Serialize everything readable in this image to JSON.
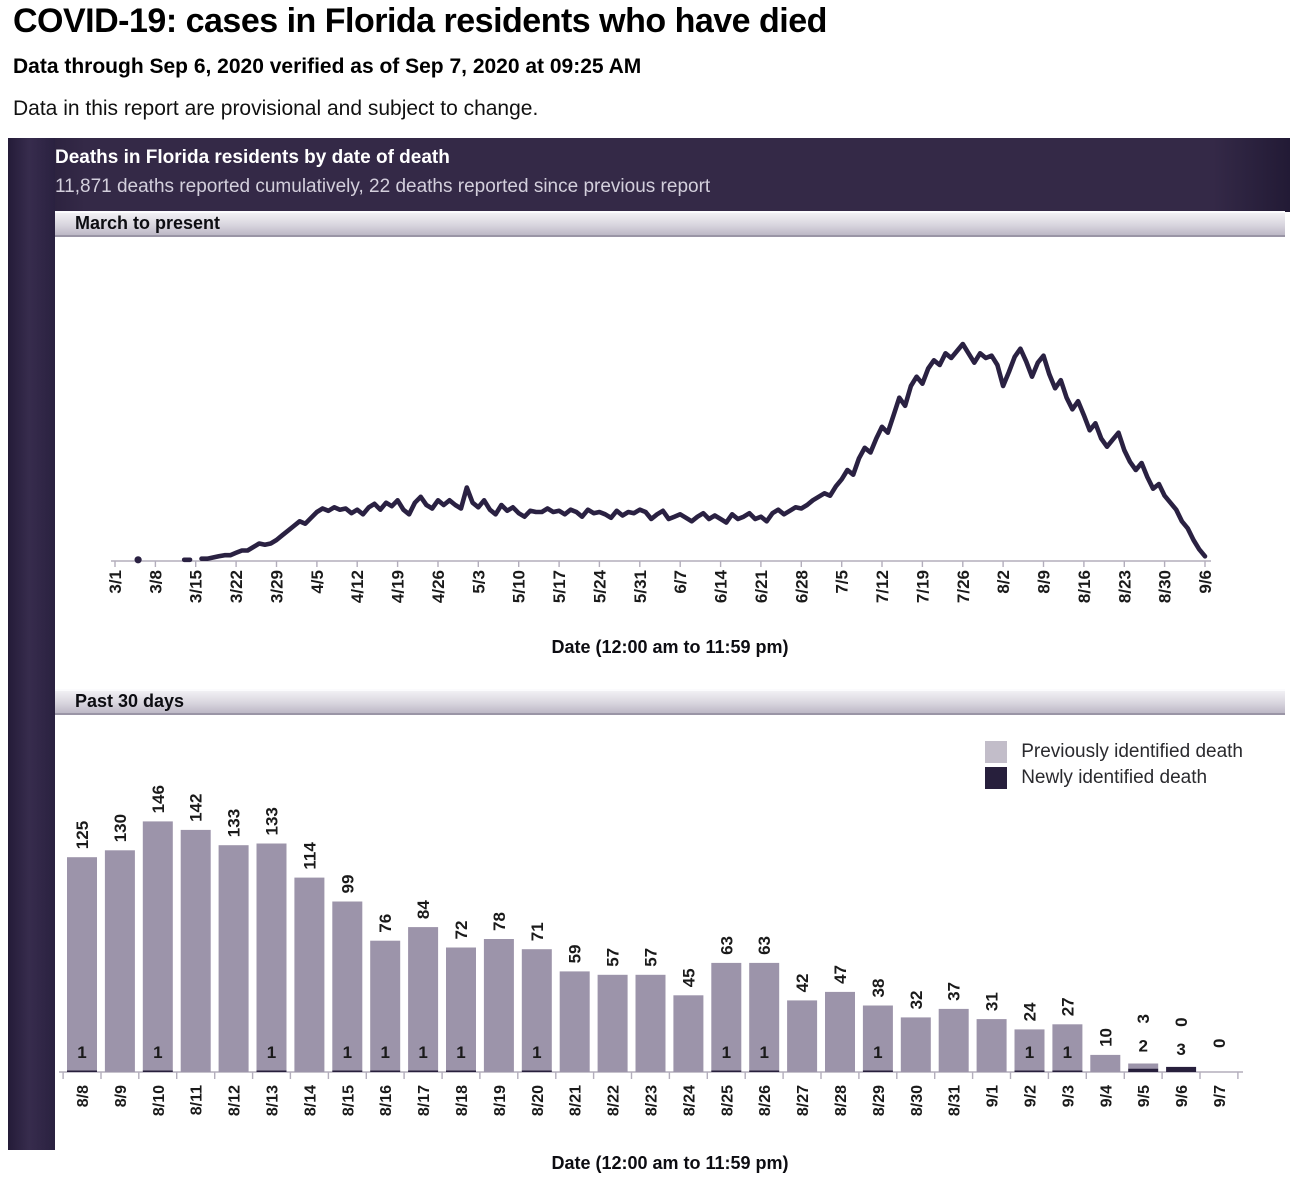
{
  "page": {
    "title": "COVID-19: cases in Florida residents who have died",
    "subtitle": "Data through Sep 6, 2020 verified as of Sep 7, 2020 at 09:25 AM",
    "note": "Data in this report are provisional and subject to change."
  },
  "panel": {
    "header": "Deaths in Florida residents by date of death",
    "subheader": "11,871 deaths reported cumulatively, 22 deaths reported since previous report"
  },
  "legend": [
    {
      "label": "Previously identified death",
      "color": "#c2bdc9"
    },
    {
      "label": "Newly identified death",
      "color": "#271f3c"
    }
  ],
  "colors": {
    "line": "#2a2142",
    "bar_light": "#9c94aa",
    "bar_dark": "#271f3c",
    "axis": "#b3aebc",
    "label": "#1a1a1a"
  },
  "chart_data": [
    {
      "type": "line",
      "title": "March to present",
      "xlabel": "Date (12:00 am to 11:59 pm)",
      "x_start": "3/1",
      "x_end": "9/6",
      "cadence": "daily",
      "x_ticks": [
        "3/1",
        "3/8",
        "3/15",
        "3/22",
        "3/29",
        "4/5",
        "4/12",
        "4/19",
        "4/26",
        "5/3",
        "5/10",
        "5/17",
        "5/24",
        "5/31",
        "6/7",
        "6/14",
        "6/21",
        "6/28",
        "7/5",
        "7/12",
        "7/19",
        "7/26",
        "8/2",
        "8/9",
        "8/16",
        "8/23",
        "8/30",
        "9/6"
      ],
      "ylim": [
        0,
        200
      ],
      "grid": false,
      "values": [
        0,
        0,
        0,
        0,
        1,
        0,
        0,
        0,
        0,
        0,
        0,
        0,
        1,
        1,
        0,
        2,
        2,
        3,
        4,
        5,
        5,
        7,
        9,
        9,
        12,
        15,
        14,
        15,
        18,
        22,
        26,
        30,
        34,
        32,
        37,
        42,
        45,
        43,
        46,
        44,
        45,
        41,
        44,
        40,
        46,
        49,
        44,
        50,
        47,
        52,
        44,
        40,
        50,
        55,
        48,
        45,
        52,
        48,
        52,
        48,
        45,
        63,
        50,
        46,
        52,
        44,
        40,
        48,
        43,
        46,
        41,
        38,
        43,
        42,
        42,
        45,
        42,
        43,
        40,
        44,
        42,
        38,
        44,
        41,
        42,
        40,
        37,
        43,
        39,
        42,
        41,
        44,
        42,
        36,
        40,
        43,
        36,
        38,
        40,
        37,
        34,
        38,
        41,
        36,
        39,
        36,
        33,
        40,
        36,
        38,
        41,
        36,
        38,
        34,
        41,
        44,
        40,
        43,
        46,
        45,
        48,
        52,
        55,
        58,
        56,
        64,
        70,
        78,
        74,
        88,
        97,
        93,
        105,
        115,
        110,
        125,
        140,
        133,
        150,
        158,
        152,
        165,
        172,
        168,
        178,
        174,
        180,
        186,
        178,
        170,
        178,
        174,
        176,
        168,
        150,
        162,
        175,
        182,
        171,
        158,
        170,
        176,
        160,
        148,
        155,
        140,
        130,
        137,
        125,
        112,
        118,
        105,
        98,
        104,
        110,
        95,
        85,
        78,
        84,
        72,
        62,
        66,
        56,
        50,
        44,
        34,
        28,
        18,
        10,
        4
      ]
    },
    {
      "type": "bar",
      "title": "Past 30 days",
      "xlabel": "Date (12:00 am to 11:59 pm)",
      "stacked": true,
      "ylim": [
        0,
        155
      ],
      "grid": false,
      "legend_position": "top-right",
      "categories": [
        "8/8",
        "8/9",
        "8/10",
        "8/11",
        "8/12",
        "8/13",
        "8/14",
        "8/15",
        "8/16",
        "8/17",
        "8/18",
        "8/19",
        "8/20",
        "8/21",
        "8/22",
        "8/23",
        "8/24",
        "8/25",
        "8/26",
        "8/27",
        "8/28",
        "8/29",
        "8/30",
        "8/31",
        "9/1",
        "9/2",
        "9/3",
        "9/4",
        "9/5",
        "9/6",
        "9/7"
      ],
      "series": [
        {
          "name": "Previously identified death",
          "values": [
            125,
            130,
            146,
            142,
            133,
            133,
            114,
            99,
            76,
            84,
            72,
            78,
            71,
            59,
            57,
            57,
            45,
            63,
            63,
            42,
            47,
            38,
            32,
            37,
            31,
            24,
            27,
            10,
            3,
            0,
            0
          ]
        },
        {
          "name": "Newly identified death",
          "values": [
            1,
            0,
            1,
            0,
            0,
            1,
            0,
            1,
            1,
            1,
            1,
            0,
            1,
            0,
            0,
            0,
            0,
            1,
            1,
            0,
            0,
            1,
            0,
            0,
            0,
            1,
            1,
            0,
            2,
            3,
            0
          ]
        }
      ]
    }
  ]
}
